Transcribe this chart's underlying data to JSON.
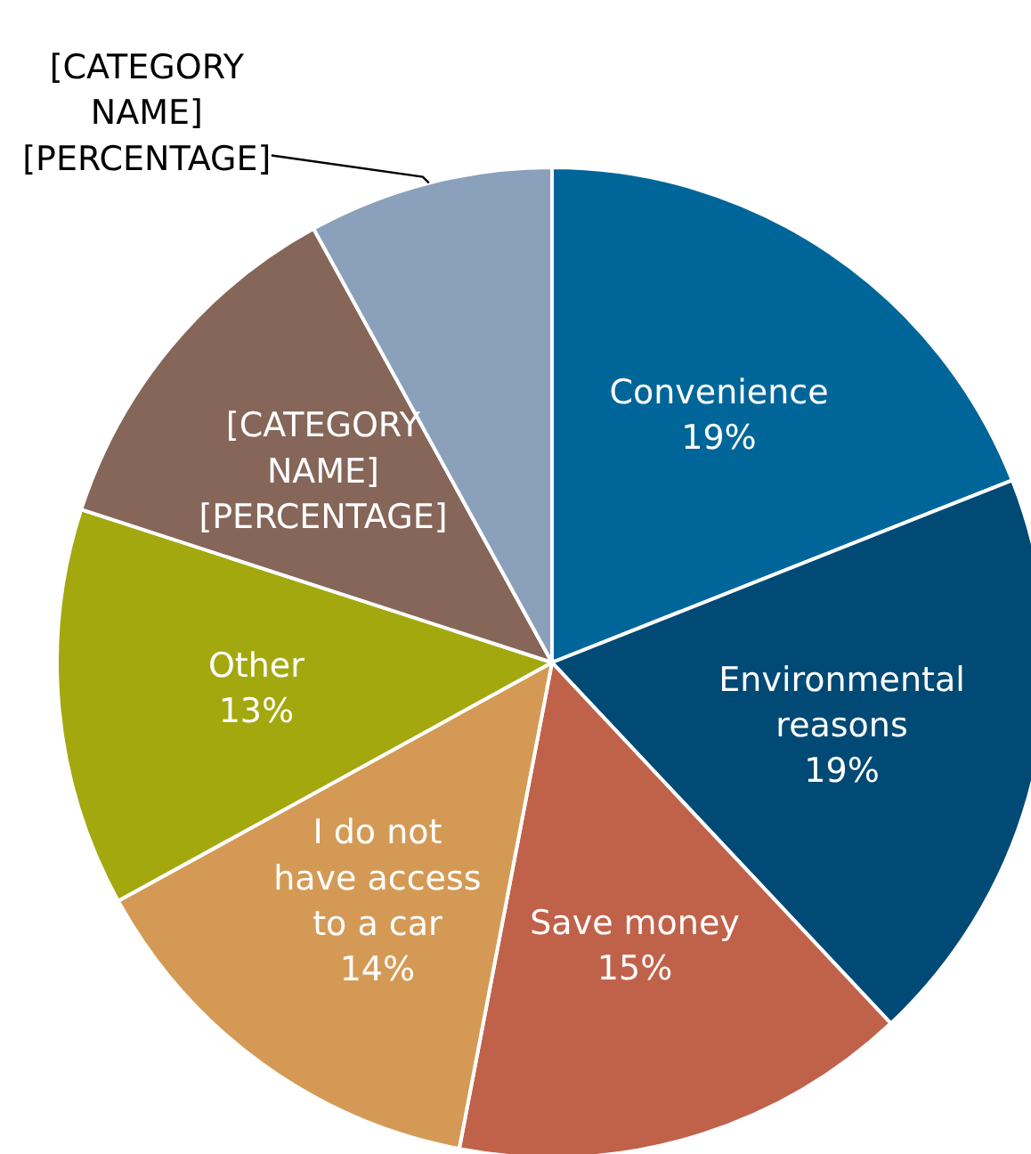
{
  "chart_data": {
    "type": "pie",
    "categories": [
      "Convenience",
      "Environmental reasons",
      "Save money",
      "I do not have access to a car",
      "Other",
      "[CATEGORY NAME]",
      "[CATEGORY NAME]"
    ],
    "values": [
      19,
      19,
      15,
      14,
      13,
      12,
      8
    ],
    "value_labels": [
      "19%",
      "19%",
      "15%",
      "14%",
      "13%",
      "[PERCENTAGE]",
      "[PERCENTAGE]"
    ],
    "colors": [
      "#006699",
      "#004a75",
      "#c0624a",
      "#d49a55",
      "#a3a80f",
      "#856659",
      "#8aa0bb"
    ]
  }
}
